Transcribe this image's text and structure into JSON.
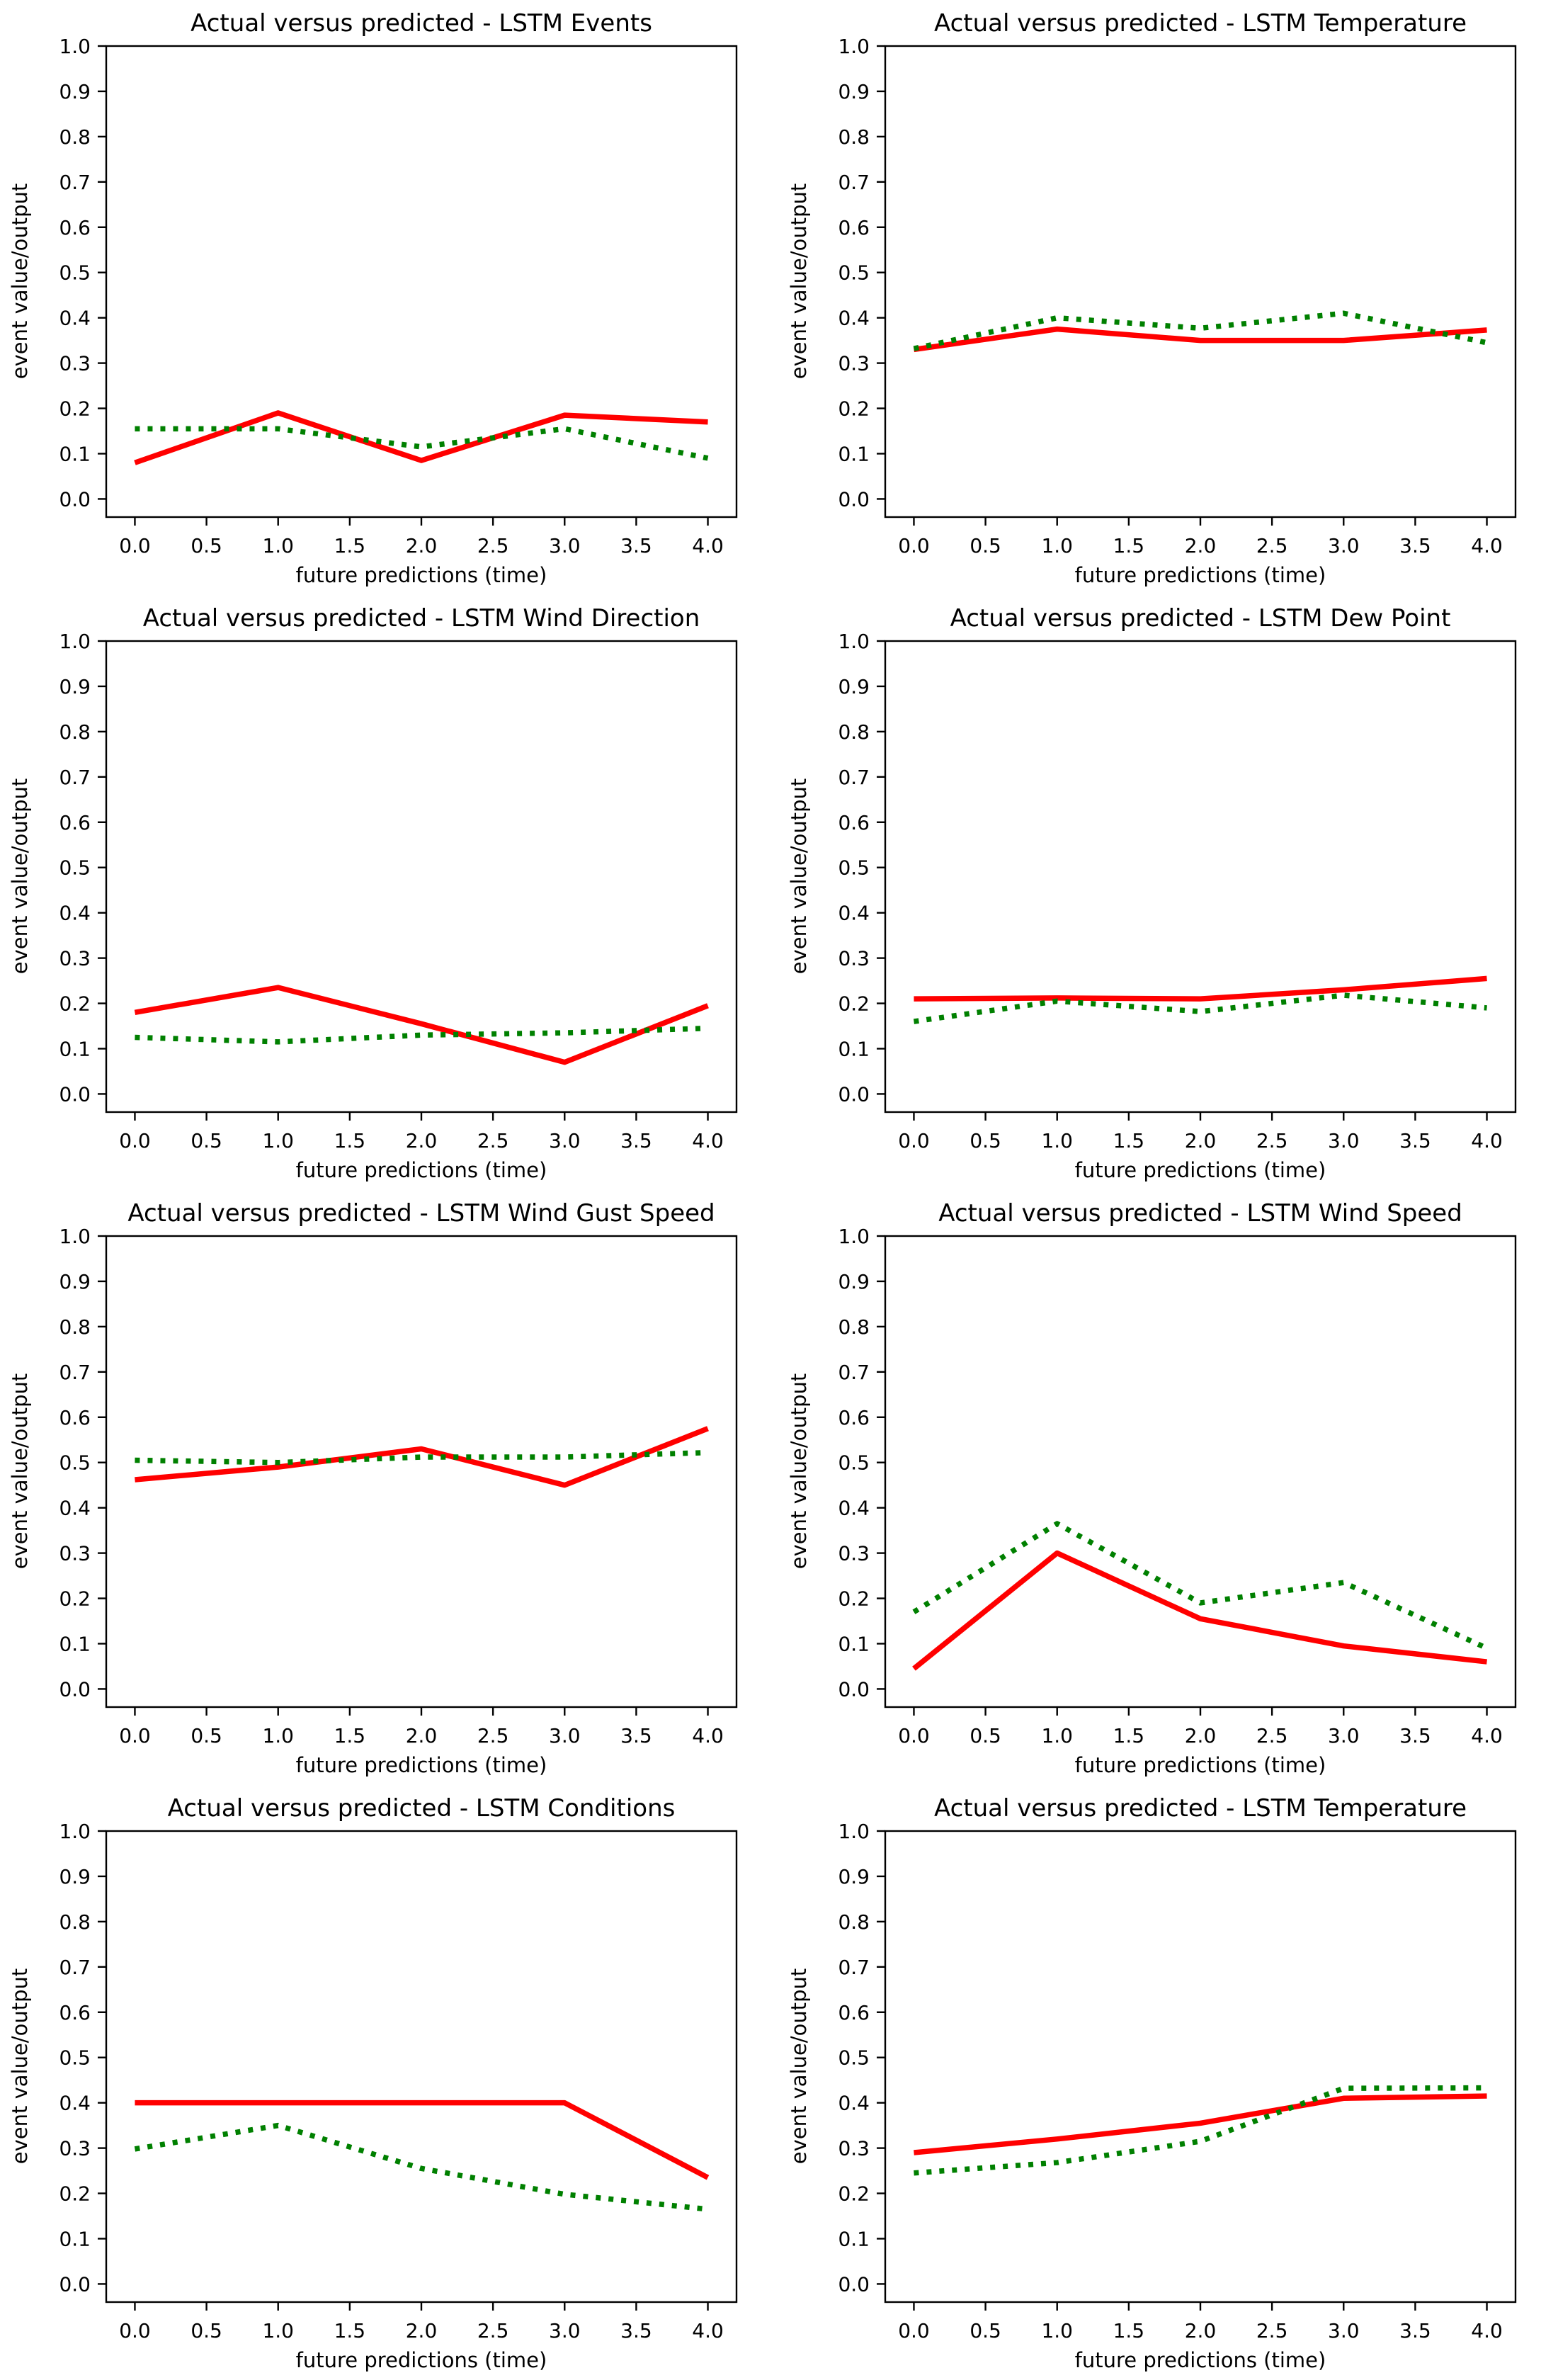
{
  "figure": {
    "background": "#ffffff",
    "rows": 4,
    "cols": 2
  },
  "chart_data": [
    {
      "type": "line",
      "title": "Actual versus predicted - LSTM Events",
      "xlabel": "future predictions (time)",
      "ylabel": "event value/output",
      "x": [
        0,
        1,
        2,
        3,
        4
      ],
      "xlim": [
        -0.2,
        4.2
      ],
      "ylim": [
        -0.04,
        1.0
      ],
      "xticks": [
        0.0,
        0.5,
        1.0,
        1.5,
        2.0,
        2.5,
        3.0,
        3.5,
        4.0
      ],
      "yticks": [
        0.0,
        0.1,
        0.2,
        0.3,
        0.4,
        0.5,
        0.6,
        0.7,
        0.8,
        0.9,
        1.0
      ],
      "grid": false,
      "legend": "none",
      "series": [
        {
          "name": "red-solid",
          "color": "#ff0000",
          "line_style": "solid",
          "values": [
            0.08,
            0.19,
            0.085,
            0.185,
            0.17
          ]
        },
        {
          "name": "green-dotted",
          "color": "#008000",
          "line_style": "dotted",
          "values": [
            0.155,
            0.155,
            0.115,
            0.155,
            0.09
          ]
        }
      ]
    },
    {
      "type": "line",
      "title": "Actual versus predicted - LSTM Temperature",
      "xlabel": "future predictions (time)",
      "ylabel": "event value/output",
      "x": [
        0,
        1,
        2,
        3,
        4
      ],
      "xlim": [
        -0.2,
        4.2
      ],
      "ylim": [
        -0.04,
        1.0
      ],
      "xticks": [
        0.0,
        0.5,
        1.0,
        1.5,
        2.0,
        2.5,
        3.0,
        3.5,
        4.0
      ],
      "yticks": [
        0.0,
        0.1,
        0.2,
        0.3,
        0.4,
        0.5,
        0.6,
        0.7,
        0.8,
        0.9,
        1.0
      ],
      "grid": false,
      "legend": "none",
      "series": [
        {
          "name": "red-solid",
          "color": "#ff0000",
          "line_style": "solid",
          "values": [
            0.33,
            0.375,
            0.35,
            0.35,
            0.373
          ]
        },
        {
          "name": "green-dotted",
          "color": "#008000",
          "line_style": "dotted",
          "values": [
            0.332,
            0.4,
            0.377,
            0.41,
            0.345
          ]
        }
      ]
    },
    {
      "type": "line",
      "title": "Actual versus predicted - LSTM Wind Direction",
      "xlabel": "future predictions (time)",
      "ylabel": "event value/output",
      "x": [
        0,
        1,
        2,
        3,
        4
      ],
      "xlim": [
        -0.2,
        4.2
      ],
      "ylim": [
        -0.04,
        1.0
      ],
      "xticks": [
        0.0,
        0.5,
        1.0,
        1.5,
        2.0,
        2.5,
        3.0,
        3.5,
        4.0
      ],
      "yticks": [
        0.0,
        0.1,
        0.2,
        0.3,
        0.4,
        0.5,
        0.6,
        0.7,
        0.8,
        0.9,
        1.0
      ],
      "grid": false,
      "legend": "none",
      "series": [
        {
          "name": "red-solid",
          "color": "#ff0000",
          "line_style": "solid",
          "values": [
            0.18,
            0.235,
            0.155,
            0.07,
            0.195
          ]
        },
        {
          "name": "green-dotted",
          "color": "#008000",
          "line_style": "dotted",
          "values": [
            0.125,
            0.115,
            0.13,
            0.135,
            0.145
          ]
        }
      ]
    },
    {
      "type": "line",
      "title": "Actual versus predicted - LSTM Dew Point",
      "xlabel": "future predictions (time)",
      "ylabel": "event value/output",
      "x": [
        0,
        1,
        2,
        3,
        4
      ],
      "xlim": [
        -0.2,
        4.2
      ],
      "ylim": [
        -0.04,
        1.0
      ],
      "xticks": [
        0.0,
        0.5,
        1.0,
        1.5,
        2.0,
        2.5,
        3.0,
        3.5,
        4.0
      ],
      "yticks": [
        0.0,
        0.1,
        0.2,
        0.3,
        0.4,
        0.5,
        0.6,
        0.7,
        0.8,
        0.9,
        1.0
      ],
      "grid": false,
      "legend": "none",
      "series": [
        {
          "name": "red-solid",
          "color": "#ff0000",
          "line_style": "solid",
          "values": [
            0.21,
            0.212,
            0.21,
            0.23,
            0.255
          ]
        },
        {
          "name": "green-dotted",
          "color": "#008000",
          "line_style": "dotted",
          "values": [
            0.16,
            0.205,
            0.182,
            0.218,
            0.19
          ]
        }
      ]
    },
    {
      "type": "line",
      "title": "Actual versus predicted - LSTM Wind Gust Speed",
      "xlabel": "future predictions (time)",
      "ylabel": "event value/output",
      "x": [
        0,
        1,
        2,
        3,
        4
      ],
      "xlim": [
        -0.2,
        4.2
      ],
      "ylim": [
        -0.04,
        1.0
      ],
      "xticks": [
        0.0,
        0.5,
        1.0,
        1.5,
        2.0,
        2.5,
        3.0,
        3.5,
        4.0
      ],
      "yticks": [
        0.0,
        0.1,
        0.2,
        0.3,
        0.4,
        0.5,
        0.6,
        0.7,
        0.8,
        0.9,
        1.0
      ],
      "grid": false,
      "legend": "none",
      "series": [
        {
          "name": "red-solid",
          "color": "#ff0000",
          "line_style": "solid",
          "values": [
            0.462,
            0.49,
            0.53,
            0.45,
            0.575
          ]
        },
        {
          "name": "green-dotted",
          "color": "#008000",
          "line_style": "dotted",
          "values": [
            0.505,
            0.5,
            0.512,
            0.512,
            0.522
          ]
        }
      ]
    },
    {
      "type": "line",
      "title": "Actual versus predicted - LSTM Wind Speed",
      "xlabel": "future predictions (time)",
      "ylabel": "event value/output",
      "x": [
        0,
        1,
        2,
        3,
        4
      ],
      "xlim": [
        -0.2,
        4.2
      ],
      "ylim": [
        -0.04,
        1.0
      ],
      "xticks": [
        0.0,
        0.5,
        1.0,
        1.5,
        2.0,
        2.5,
        3.0,
        3.5,
        4.0
      ],
      "yticks": [
        0.0,
        0.1,
        0.2,
        0.3,
        0.4,
        0.5,
        0.6,
        0.7,
        0.8,
        0.9,
        1.0
      ],
      "grid": false,
      "legend": "none",
      "series": [
        {
          "name": "red-solid",
          "color": "#ff0000",
          "line_style": "solid",
          "values": [
            0.045,
            0.3,
            0.155,
            0.095,
            0.06
          ]
        },
        {
          "name": "green-dotted",
          "color": "#008000",
          "line_style": "dotted",
          "values": [
            0.17,
            0.365,
            0.19,
            0.235,
            0.09
          ]
        }
      ]
    },
    {
      "type": "line",
      "title": "Actual versus predicted - LSTM Conditions",
      "xlabel": "future predictions (time)",
      "ylabel": "event value/output",
      "x": [
        0,
        1,
        2,
        3,
        4
      ],
      "xlim": [
        -0.2,
        4.2
      ],
      "ylim": [
        -0.04,
        1.0
      ],
      "xticks": [
        0.0,
        0.5,
        1.0,
        1.5,
        2.0,
        2.5,
        3.0,
        3.5,
        4.0
      ],
      "yticks": [
        0.0,
        0.1,
        0.2,
        0.3,
        0.4,
        0.5,
        0.6,
        0.7,
        0.8,
        0.9,
        1.0
      ],
      "grid": false,
      "legend": "none",
      "series": [
        {
          "name": "red-solid",
          "color": "#ff0000",
          "line_style": "solid",
          "values": [
            0.4,
            0.4,
            0.4,
            0.4,
            0.235
          ]
        },
        {
          "name": "green-dotted",
          "color": "#008000",
          "line_style": "dotted",
          "values": [
            0.298,
            0.35,
            0.255,
            0.198,
            0.165
          ]
        }
      ]
    },
    {
      "type": "line",
      "title": "Actual versus predicted - LSTM Temperature",
      "xlabel": "future predictions (time)",
      "ylabel": "event value/output",
      "x": [
        0,
        1,
        2,
        3,
        4
      ],
      "xlim": [
        -0.2,
        4.2
      ],
      "ylim": [
        -0.04,
        1.0
      ],
      "xticks": [
        0.0,
        0.5,
        1.0,
        1.5,
        2.0,
        2.5,
        3.0,
        3.5,
        4.0
      ],
      "yticks": [
        0.0,
        0.1,
        0.2,
        0.3,
        0.4,
        0.5,
        0.6,
        0.7,
        0.8,
        0.9,
        1.0
      ],
      "grid": false,
      "legend": "none",
      "series": [
        {
          "name": "red-solid",
          "color": "#ff0000",
          "line_style": "solid",
          "values": [
            0.29,
            0.32,
            0.355,
            0.41,
            0.415
          ]
        },
        {
          "name": "green-dotted",
          "color": "#008000",
          "line_style": "dotted",
          "values": [
            0.245,
            0.268,
            0.315,
            0.432,
            0.433
          ]
        }
      ]
    }
  ]
}
